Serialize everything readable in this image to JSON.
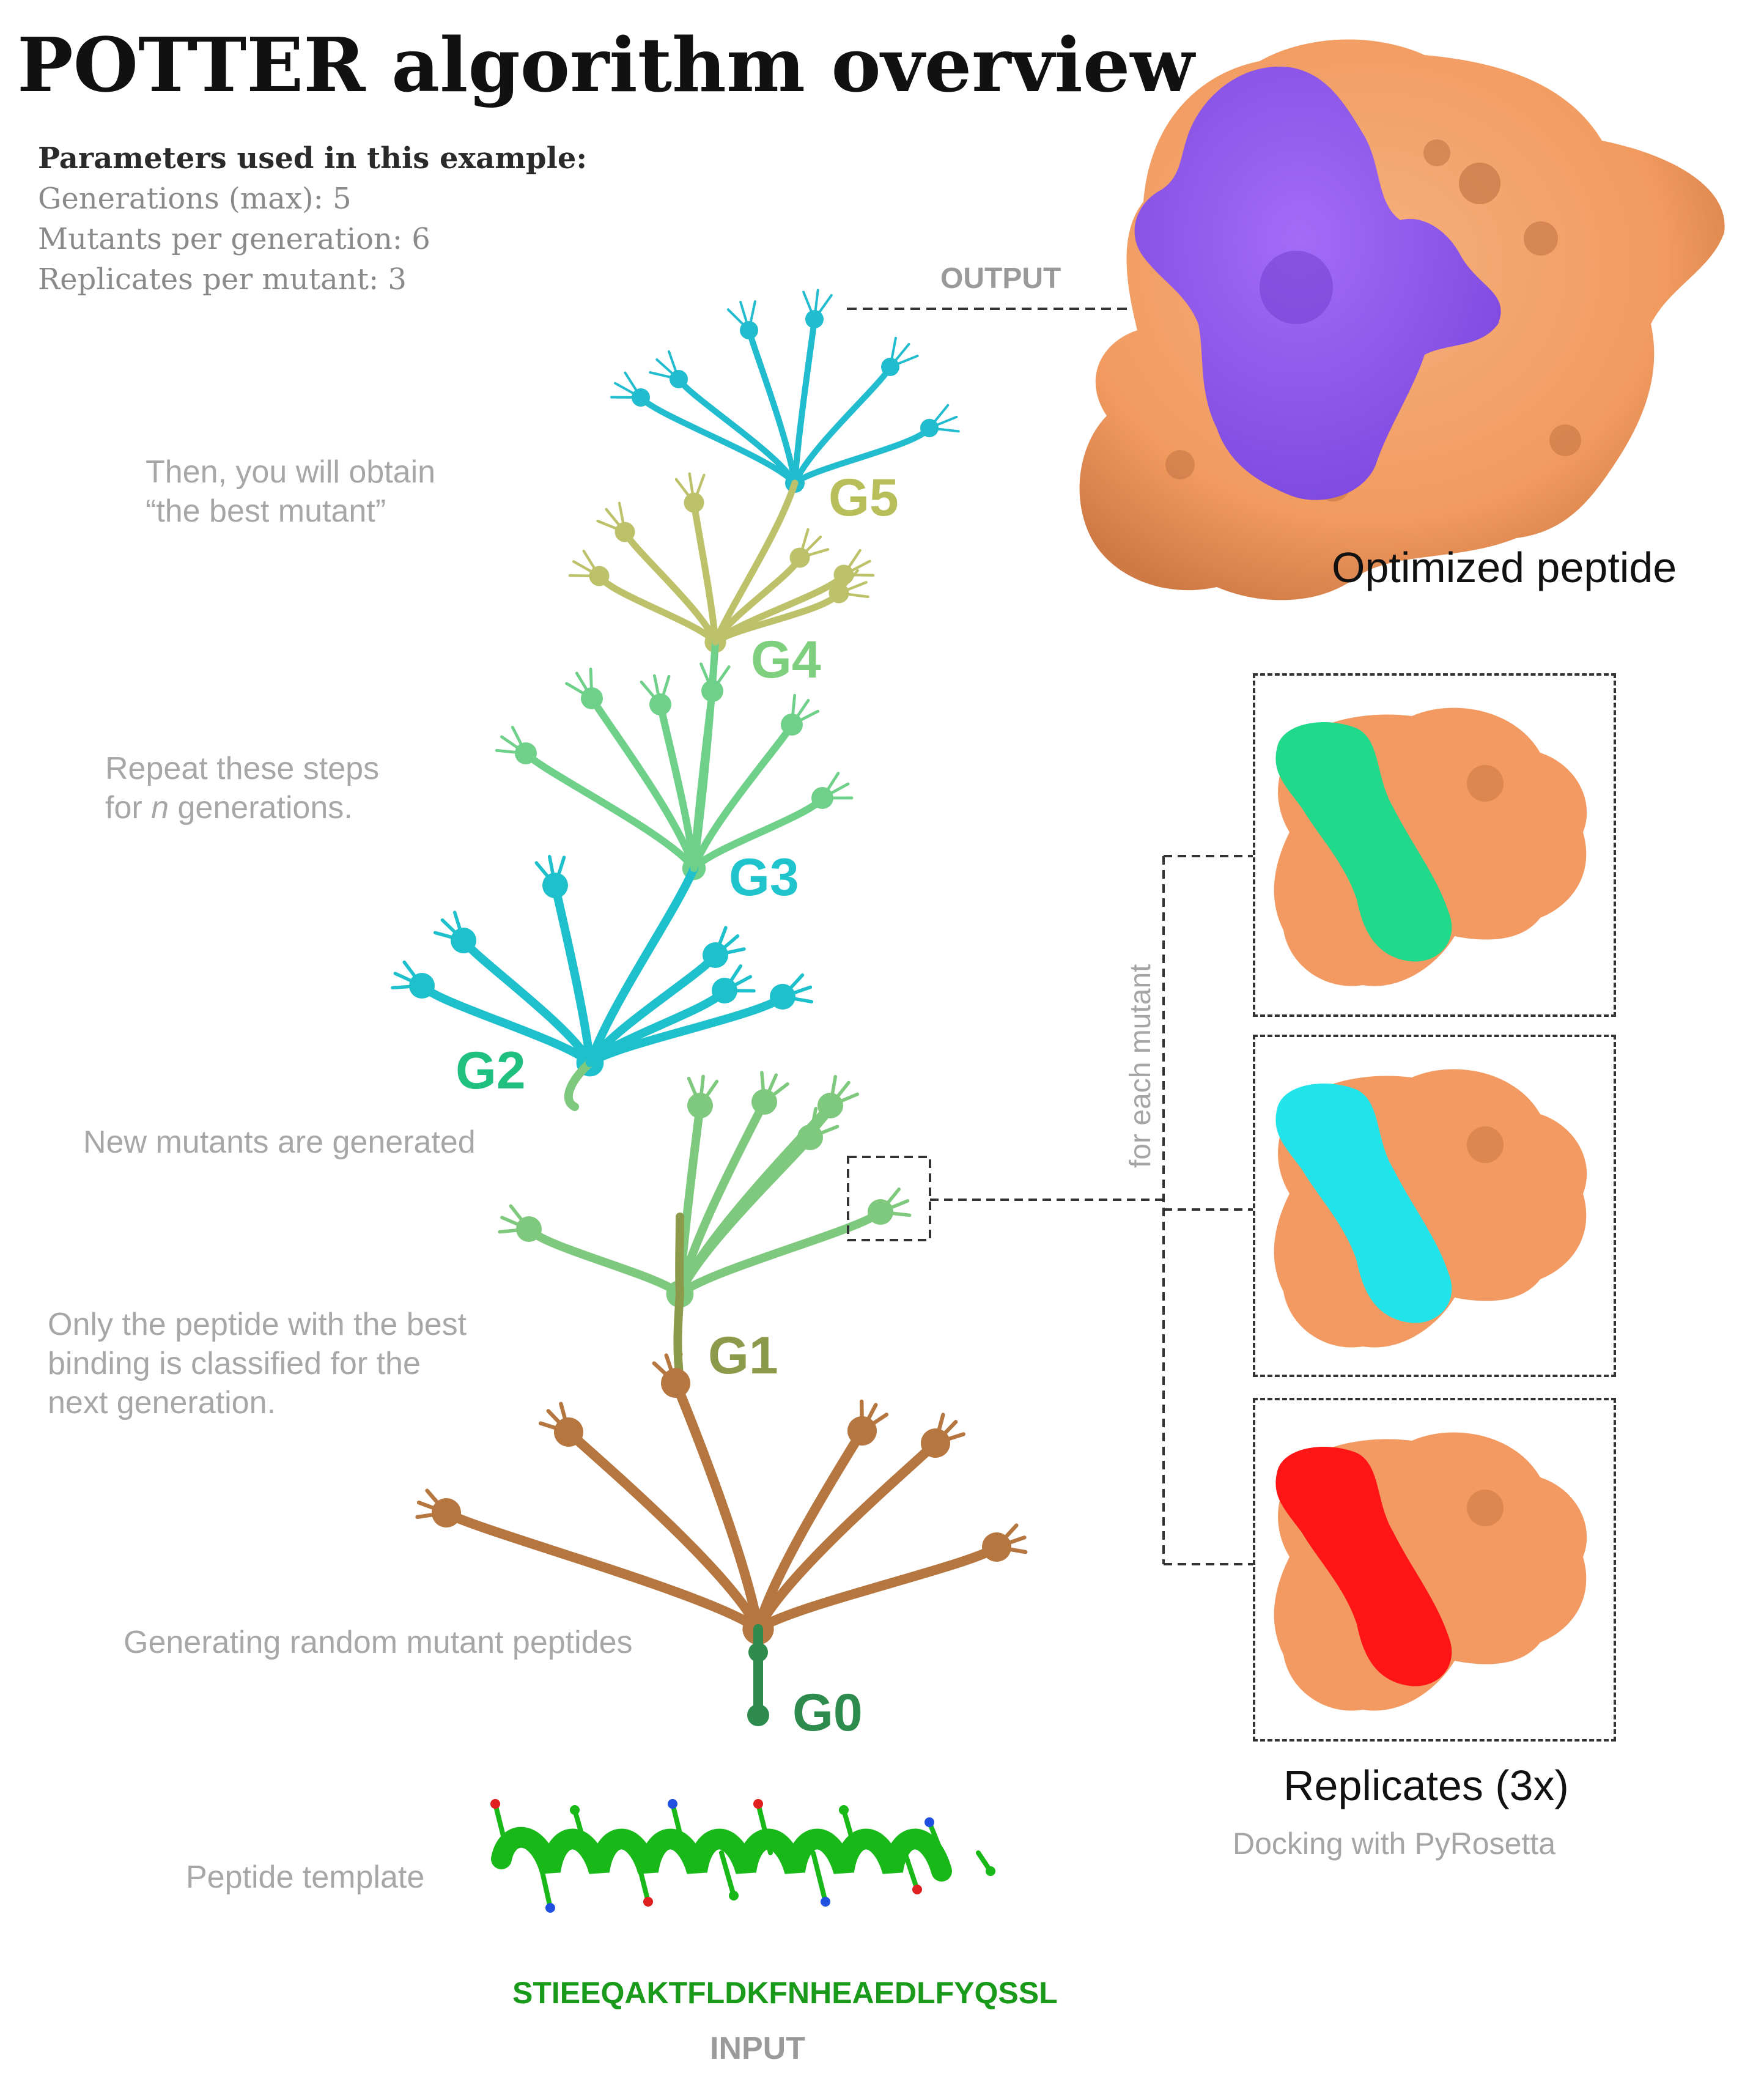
{
  "title": "POTTER algorithm overview",
  "parameters": {
    "heading": "Parameters used in this example:",
    "lines": [
      "Generations (max): 5",
      "Mutants per generation: 6",
      "Replicates per mutant: 3"
    ]
  },
  "labels": {
    "output": "OUTPUT",
    "input": "INPUT",
    "optimized": "Optimized peptide",
    "replicates": "Replicates (3x)",
    "docking": "Docking with PyRosetta",
    "for_each": "for each mutant",
    "template": "Peptide template",
    "sequence": "STIEEQAKTFLDKFNHEAEDLFYQSSL"
  },
  "notes": {
    "then": "Then, you will obtain\n“the best mutant”",
    "repeat_a": "Repeat these steps",
    "repeat_b_pre": "for ",
    "repeat_b_n": "n",
    "repeat_b_post": " generations.",
    "new_mutants": "New mutants are generated",
    "only_best": "Only the peptide with the best\nbinding is classified for the\nnext generation.",
    "generating": "Generating random mutant peptides"
  },
  "generations": [
    "G0",
    "G1",
    "G2",
    "G3",
    "G4",
    "G5"
  ],
  "colors": {
    "g0": "#2e8b4e",
    "g1": "#8c9a4c",
    "g2": "#20c080",
    "g3": "#20c4cc",
    "g4": "#7ecf7e",
    "g5": "#b8be5a",
    "protein": "#f4a068",
    "peptide_optimized": "#9b59f5",
    "peptide_green": "#21d98a",
    "peptide_cyan": "#20e4ea",
    "peptide_red": "#ff1515",
    "template": "#18b818"
  }
}
